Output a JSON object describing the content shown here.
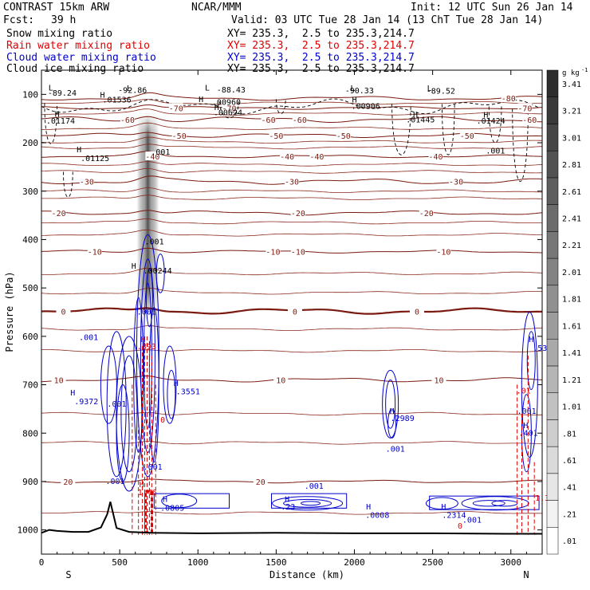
{
  "header": {
    "model": "CONTRAST 15km ARW",
    "org": "NCAR/MMM",
    "init": "Init: 12 UTC Sun 26 Jan 14",
    "fcst_label": "Fcst:",
    "fcst_value": "39 h",
    "valid": "Valid: 03 UTC Tue 28 Jan 14 (13 ChT Tue 28 Jan 14)"
  },
  "fields": [
    {
      "name": "Snow mixing ratio",
      "xy": "XY= 235.3,  2.5 to 235.3,214.7",
      "color": "#000000"
    },
    {
      "name": "Rain water mixing ratio",
      "xy": "XY= 235.3,  2.5 to 235.3,214.7",
      "color": "#e00000"
    },
    {
      "name": "Cloud water mixing ratio",
      "xy": "XY= 235.3,  2.5 to 235.3,214.7",
      "color": "#0000cc"
    },
    {
      "name": "Cloud ice mixing ratio",
      "xy": "XY= 235.3,  2.5 to 235.3,214.7",
      "color": "#000000"
    }
  ],
  "chart_data": {
    "type": "heatmap",
    "xlabel": "Distance (km)",
    "ylabel": "Pressure (hPa)",
    "xlim": [
      0,
      3200
    ],
    "ylim": [
      1050,
      50
    ],
    "x_ticks": [
      "0",
      "500",
      "1000",
      "1500",
      "2000",
      "2500",
      "3000"
    ],
    "y_ticks": [
      "100",
      "200",
      "300",
      "400",
      "500",
      "600",
      "700",
      "800",
      "900",
      "1000"
    ],
    "direction_labels": {
      "left": "S",
      "right": "N"
    },
    "colorbar": {
      "unit": "g kg",
      "unit_exp": "-1",
      "labels": [
        ".01",
        ".21",
        ".41",
        ".61",
        ".81",
        "1.01",
        "1.21",
        "1.41",
        "1.61",
        "1.81",
        "2.01",
        "2.21",
        "2.41",
        "2.61",
        "2.81",
        "3.01",
        "3.21",
        "3.41"
      ]
    },
    "temperature_contours_c": [
      {
        "value": 20,
        "p": 900,
        "labels": [
          {
            "x": 170,
            "text": "20"
          },
          {
            "x": 1400,
            "text": "20"
          }
        ]
      },
      {
        "value": 10,
        "p": 690,
        "labels": [
          {
            "x": 110,
            "text": "10"
          },
          {
            "x": 1530,
            "text": "10"
          },
          {
            "x": 2540,
            "text": "10"
          }
        ]
      },
      {
        "value": 0,
        "p": 548,
        "labels": [
          {
            "x": 140,
            "text": "0"
          },
          {
            "x": 1620,
            "text": "0"
          },
          {
            "x": 2400,
            "text": "0"
          }
        ]
      },
      {
        "value": -10,
        "p": 425,
        "labels": [
          {
            "x": 340,
            "text": "-10"
          },
          {
            "x": 1480,
            "text": "-10"
          },
          {
            "x": 1640,
            "text": "-10"
          },
          {
            "x": 2570,
            "text": "-10"
          }
        ]
      },
      {
        "value": -20,
        "p": 345,
        "labels": [
          {
            "x": 110,
            "text": "-20"
          },
          {
            "x": 1640,
            "text": "-20"
          },
          {
            "x": 2460,
            "text": "-20"
          }
        ]
      },
      {
        "value": -30,
        "p": 280,
        "labels": [
          {
            "x": 290,
            "text": "-30"
          },
          {
            "x": 1600,
            "text": "-30"
          },
          {
            "x": 2650,
            "text": "-30"
          }
        ]
      },
      {
        "value": -40,
        "p": 228,
        "labels": [
          {
            "x": 710,
            "text": "-40"
          },
          {
            "x": 1570,
            "text": "-40"
          },
          {
            "x": 1760,
            "text": "-40"
          },
          {
            "x": 2520,
            "text": "-40"
          }
        ]
      },
      {
        "value": -50,
        "p": 185,
        "labels": [
          {
            "x": 880,
            "text": "-50"
          },
          {
            "x": 1500,
            "text": "-50"
          },
          {
            "x": 1930,
            "text": "-50"
          },
          {
            "x": 2720,
            "text": "-50"
          }
        ]
      },
      {
        "value": -60,
        "p": 152,
        "labels": [
          {
            "x": 550,
            "text": "-60"
          },
          {
            "x": 1450,
            "text": "-60"
          },
          {
            "x": 1650,
            "text": "-60"
          },
          {
            "x": 3120,
            "text": "-60"
          }
        ]
      },
      {
        "value": -70,
        "p": 128,
        "labels": [
          {
            "x": 860,
            "text": "-70"
          },
          {
            "x": 1200,
            "text": "-70"
          },
          {
            "x": 3090,
            "text": "-70"
          }
        ]
      },
      {
        "value": -80,
        "p": 108,
        "labels": [
          {
            "x": 2985,
            "text": "-80"
          }
        ]
      }
    ],
    "extrema_labels": [
      {
        "x": 40,
        "p": 103,
        "text": "-89.24",
        "color": "#000000"
      },
      {
        "x": 490,
        "p": 97,
        "text": "-92.86",
        "color": "#000000"
      },
      {
        "x": 1120,
        "p": 96,
        "text": "-88.43",
        "color": "#000000"
      },
      {
        "x": 1940,
        "p": 98,
        "text": "-90.33",
        "color": "#000000"
      },
      {
        "x": 2460,
        "p": 99,
        "text": "-89.52",
        "color": "#000000"
      },
      {
        "x": 390,
        "p": 117,
        "text": ".01536",
        "color": "#000000"
      },
      {
        "x": 1090,
        "p": 122,
        "text": ".00960",
        "color": "#000000"
      },
      {
        "x": 1980,
        "p": 130,
        "text": ".00906",
        "color": "#000000"
      },
      {
        "x": 1100,
        "p": 143,
        "text": ".00624",
        "color": "#000000"
      },
      {
        "x": 2330,
        "p": 158,
        "text": ".01445",
        "color": "#000000"
      },
      {
        "x": 2780,
        "p": 160,
        "text": ".01424",
        "color": "#000000"
      },
      {
        "x": 30,
        "p": 160,
        "text": ".01174",
        "color": "#000000"
      },
      {
        "x": 250,
        "p": 238,
        "text": ".01125",
        "color": "#000000"
      },
      {
        "x": 650,
        "p": 470,
        "text": ".00244",
        "color": "#000000"
      },
      {
        "x": 660,
        "p": 410,
        "text": ".001",
        "color": "#000000"
      },
      {
        "x": 700,
        "p": 225,
        "text": ".001",
        "color": "#000000"
      },
      {
        "x": 2840,
        "p": 222,
        "text": ".001",
        "color": "#000000"
      },
      {
        "x": 210,
        "p": 740,
        "text": ".9372",
        "color": "#0000cc"
      },
      {
        "x": 860,
        "p": 720,
        "text": ".3551",
        "color": "#0000cc"
      },
      {
        "x": 2230,
        "p": 775,
        "text": ".2989",
        "color": "#0000cc"
      },
      {
        "x": 2200,
        "p": 838,
        "text": ".001",
        "color": "#0000cc"
      },
      {
        "x": 760,
        "p": 960,
        "text": ".0805",
        "color": "#0000cc"
      },
      {
        "x": 1530,
        "p": 958,
        "text": ".23",
        "color": "#0000cc"
      },
      {
        "x": 1680,
        "p": 915,
        "text": ".001",
        "color": "#0000cc"
      },
      {
        "x": 2070,
        "p": 975,
        "text": ".0008",
        "color": "#0000cc"
      },
      {
        "x": 2560,
        "p": 975,
        "text": ".2314",
        "color": "#0000cc"
      },
      {
        "x": 2690,
        "p": 985,
        "text": ".001",
        "color": "#0000cc"
      },
      {
        "x": 240,
        "p": 608,
        "text": ".001",
        "color": "#0000cc"
      },
      {
        "x": 420,
        "p": 745,
        "text": ".001",
        "color": "#0000cc"
      },
      {
        "x": 610,
        "p": 555,
        "text": ".001",
        "color": "#0000cc"
      },
      {
        "x": 3040,
        "p": 760,
        "text": ".001",
        "color": "#0000cc"
      },
      {
        "x": 3050,
        "p": 805,
        "text": ".401",
        "color": "#0000cc"
      },
      {
        "x": 3140,
        "p": 630,
        "text": ".53",
        "color": "#0000cc"
      },
      {
        "x": 610,
        "p": 627,
        "text": ".893",
        "color": "#e00000"
      },
      {
        "x": 615,
        "p": 928,
        "text": "1.46",
        "color": "#e00000"
      },
      {
        "x": 3155,
        "p": 940,
        "text": "1.3",
        "color": "#e00000"
      },
      {
        "x": 3035,
        "p": 718,
        "text": ".01",
        "color": "#e00000"
      },
      {
        "x": 2660,
        "p": 997,
        "text": "0",
        "color": "#e00000"
      },
      {
        "x": 760,
        "p": 778,
        "text": "0",
        "color": "#e00000"
      },
      {
        "x": 650,
        "p": 875,
        "text": ".001",
        "color": "#0000cc"
      },
      {
        "x": 410,
        "p": 905,
        "text": ".001",
        "color": "#0000cc"
      }
    ],
    "h_markers": [
      {
        "x": 240,
        "p": 220,
        "color": "#000000"
      },
      {
        "x": 100,
        "p": 146,
        "color": "#000000"
      },
      {
        "x": 590,
        "p": 460,
        "color": "#000000"
      },
      {
        "x": 1120,
        "p": 132,
        "color": "#000000"
      },
      {
        "x": 1020,
        "p": 116,
        "color": "#000000"
      },
      {
        "x": 2000,
        "p": 117,
        "color": "#000000"
      },
      {
        "x": 2390,
        "p": 147,
        "color": "#000000"
      },
      {
        "x": 2840,
        "p": 148,
        "color": "#000000"
      },
      {
        "x": 390,
        "p": 107,
        "color": "#000000"
      },
      {
        "x": 200,
        "p": 722,
        "color": "#0000cc"
      },
      {
        "x": 860,
        "p": 702,
        "color": "#0000cc"
      },
      {
        "x": 2240,
        "p": 760,
        "color": "#0000cc"
      },
      {
        "x": 790,
        "p": 942,
        "color": "#0000cc"
      },
      {
        "x": 1570,
        "p": 942,
        "color": "#0000cc"
      },
      {
        "x": 2090,
        "p": 958,
        "color": "#0000cc"
      },
      {
        "x": 2570,
        "p": 958,
        "color": "#0000cc"
      },
      {
        "x": 3130,
        "p": 612,
        "color": "#0000cc"
      },
      {
        "x": 3095,
        "p": 790,
        "color": "#0000cc"
      },
      {
        "x": 650,
        "p": 612,
        "color": "#e00000"
      },
      {
        "x": 640,
        "p": 912,
        "color": "#e00000"
      }
    ],
    "l_markers": [
      {
        "x": 60,
        "p": 92,
        "color": "#000000"
      },
      {
        "x": 560,
        "p": 93,
        "color": "#000000"
      },
      {
        "x": 1060,
        "p": 92,
        "color": "#000000"
      },
      {
        "x": 1990,
        "p": 93,
        "color": "#000000"
      },
      {
        "x": 2480,
        "p": 93,
        "color": "#000000"
      }
    ],
    "terrain": [
      [
        0,
        1006
      ],
      [
        50,
        1000
      ],
      [
        100,
        1002
      ],
      [
        200,
        1004
      ],
      [
        300,
        1004
      ],
      [
        380,
        995
      ],
      [
        420,
        968
      ],
      [
        440,
        942
      ],
      [
        455,
        962
      ],
      [
        480,
        996
      ],
      [
        560,
        1004
      ],
      [
        700,
        1006
      ],
      [
        1000,
        1007
      ],
      [
        1500,
        1006
      ],
      [
        2000,
        1007
      ],
      [
        2500,
        1007
      ],
      [
        3000,
        1008
      ],
      [
        3200,
        1008
      ]
    ],
    "snow_shading_column": {
      "x": 680,
      "p_top": 140,
      "p_bottom": 560,
      "peak_gkg": 2.2
    }
  }
}
